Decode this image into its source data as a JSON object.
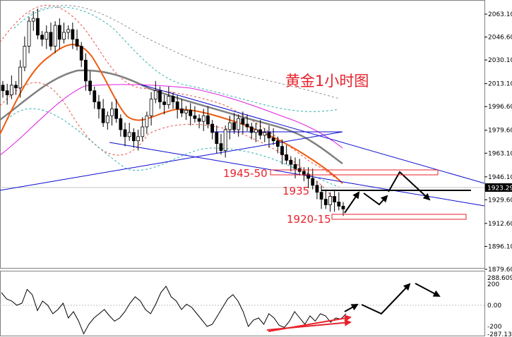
{
  "annotations": {
    "title": "黄金1小时图",
    "zone_high": "1945-50",
    "level_mid": "1935",
    "zone_low": "1920-15"
  },
  "colors": {
    "background": "#ffffff",
    "annotation_red": "#e8222b",
    "trendline_blue": "#0a0ad0",
    "ma_orange": "#f05a10",
    "ma_gray": "#808080",
    "ma_magenta": "#e020e0",
    "current_price_line": "#c0c0c0"
  },
  "chart_data": {
    "type": "candlestick",
    "instrument": "gold",
    "timeframe": "1 hour",
    "price_axis": {
      "ticks": [
        "2063.10",
        "2046.60",
        "2030.10",
        "2013.10",
        "1996.60",
        "1979.60",
        "1963.10",
        "1946.10",
        "1929.60",
        "1912.60",
        "1896.10",
        "1879.60"
      ],
      "range": [
        1873,
        2068
      ],
      "current_price": "1923.29"
    },
    "oscillator_axis": {
      "ticks": [
        "288.6095",
        "200",
        "0.00",
        "-200",
        "-287.131"
      ],
      "range": [
        -300,
        300
      ]
    },
    "close_prices": [
      2008,
      2005,
      2012,
      2010,
      2025,
      2040,
      2058,
      2060,
      2048,
      2045,
      2050,
      2040,
      2055,
      2045,
      2050,
      2052,
      2045,
      2040,
      2030,
      2015,
      2008,
      2000,
      1995,
      1985,
      1990,
      1995,
      1988,
      1980,
      1975,
      1978,
      1972,
      1975,
      1982,
      1990,
      2002,
      2008,
      2000,
      1998,
      2004,
      2000,
      1995,
      1992,
      1994,
      1990,
      1988,
      1986,
      1990,
      1984,
      1978,
      1970,
      1965,
      1980,
      1985,
      1980,
      1988,
      1984,
      1982,
      1978,
      1980,
      1976,
      1978,
      1974,
      1972,
      1968,
      1962,
      1958,
      1955,
      1952,
      1950,
      1948,
      1945,
      1940,
      1935,
      1930,
      1926,
      1932,
      1928,
      1925,
      1923
    ],
    "oscillator_values": [
      120,
      60,
      40,
      0,
      20,
      150,
      100,
      -50,
      40,
      0,
      -80,
      -40,
      20,
      -120,
      -60,
      -150,
      -270,
      -180,
      -120,
      -80,
      -40,
      -100,
      -150,
      -120,
      -60,
      20,
      80,
      40,
      -40,
      -80,
      10,
      120,
      180,
      80,
      40,
      -40,
      10,
      -20,
      -80,
      -140,
      -200,
      -180,
      -100,
      -20,
      60,
      100,
      40,
      -60,
      -200,
      -140,
      -120,
      -180,
      -80,
      -120,
      -190,
      -210,
      -150,
      -60,
      -120,
      -180,
      -100,
      -150,
      -80,
      -100,
      -160,
      -120,
      -130,
      -80
    ]
  }
}
